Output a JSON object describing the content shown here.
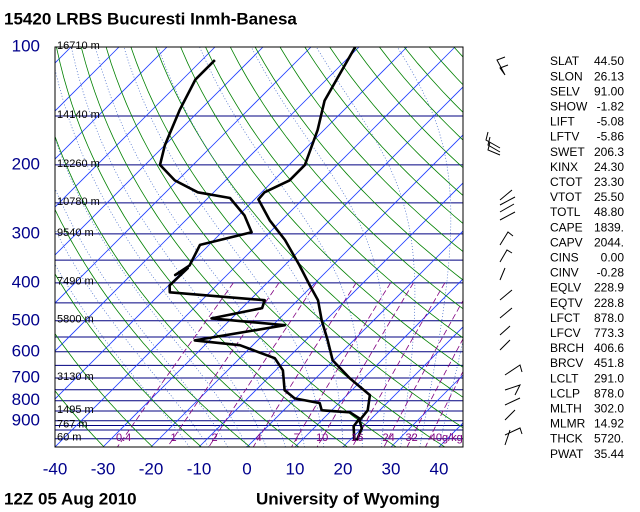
{
  "chart_data": {
    "type": "skewt",
    "title": "15420 LRBS Bucuresti Inmh-Banesa",
    "time": "12Z 05 Aug 2010",
    "source": "University of Wyoming",
    "ylim": [
      100,
      1050
    ],
    "yticks": [
      100,
      200,
      300,
      400,
      500,
      600,
      700,
      800,
      900
    ],
    "xlim": [
      -40,
      45
    ],
    "xticks": [
      -40,
      -30,
      -20,
      -10,
      0,
      10,
      20,
      30,
      40
    ],
    "isobars": [
      100,
      150,
      200,
      250,
      300,
      350,
      400,
      450,
      500,
      550,
      600,
      650,
      700,
      750,
      800,
      850,
      900,
      925,
      950,
      1000
    ],
    "heights": [
      {
        "value": 100,
        "label": "16710 m"
      },
      {
        "value": 150,
        "label": "14140 m"
      },
      {
        "value": 200,
        "label": "12260 m"
      },
      {
        "value": 250,
        "label": "10780 m"
      },
      {
        "value": 300,
        "label": "9540 m"
      },
      {
        "value": 400,
        "label": "7490 m"
      },
      {
        "value": 500,
        "label": "5800 m"
      },
      {
        "value": 700,
        "label": "3130 m"
      },
      {
        "value": 850,
        "label": "1495 m"
      },
      {
        "value": 925,
        "label": "767 m"
      },
      {
        "value": 1000,
        "label": "60 m"
      }
    ],
    "mixing_ratios": [
      0.4,
      1,
      2,
      4,
      7,
      10,
      16,
      24,
      32,
      {
        "value": 40,
        "label": "40g/kg"
      }
    ],
    "series": [
      {
        "color": "#000000",
        "pressure": [
          100,
          137,
          163,
          200,
          219,
          235,
          245,
          277,
          311,
          361,
          406,
          443,
          499,
          561,
          631,
          701,
          774,
          846,
          898,
          940,
          1010
        ],
        "values": [
          -60.8,
          -56,
          -51.3,
          -46.7,
          -46.7,
          -49.4,
          -49.2,
          -42.5,
          -35.2,
          -26.9,
          -20.6,
          -15.8,
          -10.8,
          -5.4,
          -0.2,
          7.1,
          14.8,
          17.5,
          17.9,
          20,
          21.5
        ]
      },
      {
        "color": "#000000",
        "pressure": [
          108,
          121,
          145,
          178,
          200,
          219,
          235,
          243,
          269,
          297,
          320,
          361,
          382,
          367,
          406,
          423,
          443,
          464,
          493,
          513,
          561,
          577,
          623,
          669,
          752,
          789,
          811,
          846,
          856,
          888,
          930,
          1010
        ],
        "values": [
          -87.3,
          -87.3,
          -84.2,
          -80,
          -76.9,
          -70.6,
          -63.3,
          -55.4,
          -48.8,
          -43.8,
          -51.9,
          -49.8,
          -50.8,
          -49.6,
          -49.8,
          -48.3,
          -26.9,
          -25.8,
          -34.2,
          -17.5,
          -33.1,
          -22.7,
          -12.7,
          -8.5,
          -4,
          -0.2,
          6,
          7.9,
          14.2,
          17.5,
          17.9,
          21
        ]
      }
    ],
    "indices": [
      [
        "SLAT",
        "44.50"
      ],
      [
        "SLON",
        "26.13"
      ],
      [
        "SELV",
        "91.00"
      ],
      [
        "SHOW",
        "-1.82"
      ],
      [
        "LIFT",
        "-5.08"
      ],
      [
        "LFTV",
        "-5.86"
      ],
      [
        "SWET",
        "206.3"
      ],
      [
        "KINX",
        "24.30"
      ],
      [
        "CTOT",
        "23.30"
      ],
      [
        "VTOT",
        "25.50"
      ],
      [
        "TOTL",
        "48.80"
      ],
      [
        "CAPE",
        "1839."
      ],
      [
        "CAPV",
        "2044."
      ],
      [
        "CINS",
        "0.00"
      ],
      [
        "CINV",
        "-0.28"
      ],
      [
        "EQLV",
        "228.9"
      ],
      [
        "EQTV",
        "228.8"
      ],
      [
        "LFCT",
        "878.0"
      ],
      [
        "LFCV",
        "773.3"
      ],
      [
        "BRCH",
        "406.6"
      ],
      [
        "BRCV",
        "451.8"
      ],
      [
        "LCLT",
        "291.0"
      ],
      [
        "LCLP",
        "878.0"
      ],
      [
        "MLTH",
        "302.0"
      ],
      [
        "MLMR",
        "14.92"
      ],
      [
        "THCK",
        "5720."
      ],
      [
        "PWAT",
        "35.44"
      ]
    ]
  }
}
